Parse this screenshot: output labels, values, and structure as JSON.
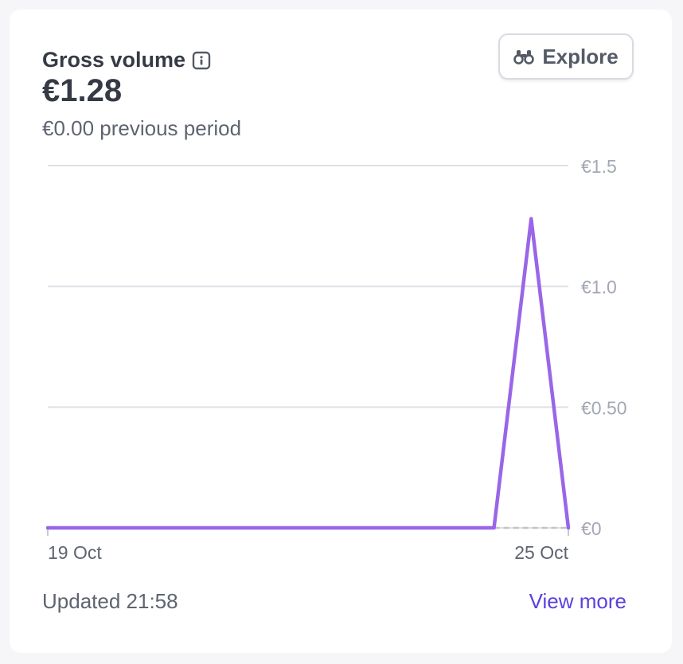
{
  "card": {
    "title": "Gross volume",
    "amount": "€1.28",
    "previous": "€0.00 previous period",
    "explore_label": "Explore",
    "updated": "Updated 21:58",
    "view_more": "View more"
  },
  "chart_data": {
    "type": "line",
    "x_start_label": "19 Oct",
    "x_end_label": "25 Oct",
    "y_ticks": [
      {
        "value": 0,
        "label": "€0"
      },
      {
        "value": 0.5,
        "label": "€0.50"
      },
      {
        "value": 1.0,
        "label": "€1.0"
      },
      {
        "value": 1.5,
        "label": "€1.5"
      }
    ],
    "ylim": [
      0,
      1.5
    ],
    "grid": true,
    "series": [
      {
        "role": "current",
        "color": "#9966e8",
        "style": "solid",
        "points": [
          0,
          0,
          0,
          0,
          0,
          0,
          0,
          0,
          0,
          0,
          0,
          0,
          0,
          1.28,
          0
        ]
      },
      {
        "role": "previous",
        "color": "#c0c4cc",
        "style": "dashed",
        "points_from_index": 12,
        "points": [
          0,
          0,
          0
        ]
      }
    ]
  }
}
